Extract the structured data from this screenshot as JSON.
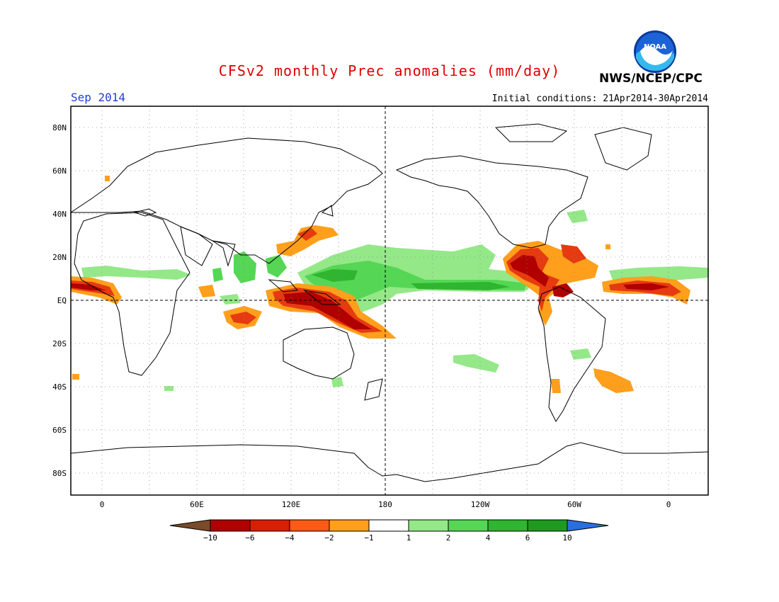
{
  "header": {
    "title": "CFSv2 monthly Prec anomalies (mm/day)",
    "title_color": "#e00000",
    "month": "Sep 2014",
    "month_color": "#1f3fd9",
    "initial_conditions": "Initial conditions: 21Apr2014-30Apr2014",
    "agency": "NWS/NCEP/CPC",
    "logo_text": "NOAA"
  },
  "map": {
    "lon_labels": [
      "0",
      "60E",
      "120E",
      "180",
      "120W",
      "60W",
      "0"
    ],
    "lat_labels": [
      "80N",
      "60N",
      "40N",
      "20N",
      "EQ",
      "20S",
      "40S",
      "60S",
      "80S"
    ]
  },
  "colorbar": {
    "labels": [
      "-10",
      "-6",
      "-4",
      "-2",
      "-1",
      "1",
      "2",
      "4",
      "6",
      "10"
    ],
    "colors": [
      "#7a4a2a",
      "#b00000",
      "#d81e05",
      "#ff5a14",
      "#ff9f1c",
      "#ffffff",
      "#94e888",
      "#55d655",
      "#2fb52f",
      "#1e9a1e",
      "#2a6fdf"
    ]
  },
  "anomaly_colors": {
    "dry_strong": "#b00000",
    "dry_mid": "#e63a10",
    "dry_light": "#ff9f1c",
    "wet_light": "#94e888",
    "wet_mid": "#55d655",
    "wet_strong": "#2fb52f"
  }
}
